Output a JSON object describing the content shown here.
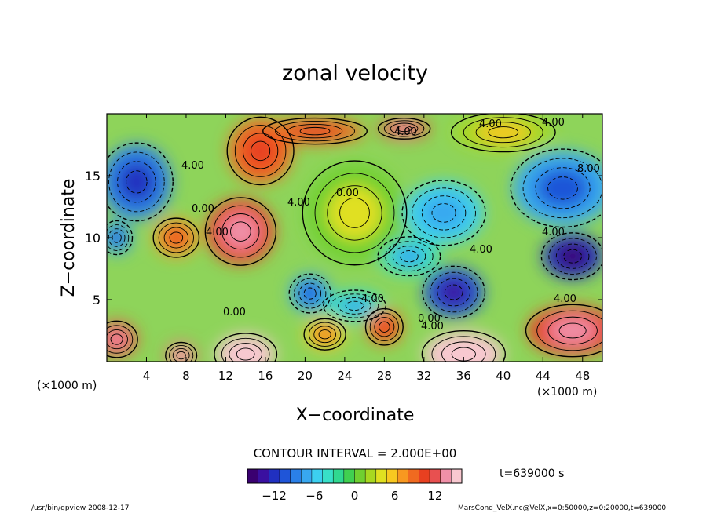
{
  "chart_data": {
    "type": "heatmap",
    "title": "zonal velocity",
    "xlabel": "X−coordinate",
    "ylabel": "Z−coordinate",
    "x_unit": "(×1000 m)",
    "xlim": [
      0,
      50
    ],
    "ylim": [
      0,
      20
    ],
    "x_ticks": [
      4,
      8,
      12,
      16,
      20,
      24,
      28,
      32,
      36,
      40,
      44,
      48
    ],
    "y_ticks": [
      5,
      10,
      15
    ],
    "contour_interval_text": "CONTOUR INTERVAL = 2.000E+00",
    "time_text": "t=639000 s",
    "colorbar": {
      "range": [
        -16,
        16
      ],
      "ticks": [
        -12,
        -6,
        0,
        6,
        12
      ],
      "colors": [
        "#3a0070",
        "#3a10a0",
        "#2030c0",
        "#1f55d8",
        "#2a80e8",
        "#38a8f0",
        "#3cd0f0",
        "#38e0c8",
        "#30d890",
        "#40d050",
        "#70d030",
        "#a8d820",
        "#e0e020",
        "#f8c820",
        "#f89820",
        "#f06a20",
        "#e84020",
        "#e85050",
        "#f090a8",
        "#f8c8d0"
      ]
    },
    "contour_labels": [
      "4.00",
      "0.00",
      "4.00",
      "0.00",
      "4.00",
      "0.00",
      "4.00",
      "4.00",
      "4.00",
      "0.00",
      "4.00",
      "8.00",
      "4.00",
      "4.00",
      "4.00",
      "4.00"
    ],
    "field_blobs": [
      {
        "x": 13.5,
        "z": 10.5,
        "rx": 3.4,
        "rz": 2.6,
        "v": 11
      },
      {
        "x": 15.5,
        "z": 17.0,
        "rx": 3.2,
        "rz": 2.6,
        "v": 8
      },
      {
        "x": 7.0,
        "z": 10.0,
        "rx": 2.2,
        "rz": 1.5,
        "v": 7
      },
      {
        "x": 21.0,
        "z": 18.6,
        "rx": 5.0,
        "rz": 1.0,
        "v": 8
      },
      {
        "x": 30.0,
        "z": 18.8,
        "rx": 2.5,
        "rz": 0.8,
        "v": 10
      },
      {
        "x": 3.0,
        "z": 14.5,
        "rx": 3.5,
        "rz": 3.0,
        "v": -9
      },
      {
        "x": 1.0,
        "z": 10.0,
        "rx": 1.5,
        "rz": 1.3,
        "v": -8
      },
      {
        "x": 35.0,
        "z": 5.6,
        "rx": 3.0,
        "rz": 2.0,
        "v": -11
      },
      {
        "x": 47.0,
        "z": 8.5,
        "rx": 3.0,
        "rz": 1.8,
        "v": -12
      },
      {
        "x": 46.0,
        "z": 14.0,
        "rx": 5.0,
        "rz": 3.0,
        "v": -7
      },
      {
        "x": 34.0,
        "z": 12.0,
        "rx": 4.0,
        "rz": 2.5,
        "v": -5
      },
      {
        "x": 20.5,
        "z": 5.5,
        "rx": 2.0,
        "rz": 1.5,
        "v": -7
      },
      {
        "x": 25.0,
        "z": 4.5,
        "rx": 3.0,
        "rz": 1.2,
        "v": -4
      },
      {
        "x": 30.5,
        "z": 8.5,
        "rx": 3.0,
        "rz": 1.5,
        "v": -4
      },
      {
        "x": 1.0,
        "z": 1.8,
        "rx": 2.0,
        "rz": 1.4,
        "v": 10
      },
      {
        "x": 47.0,
        "z": 2.5,
        "rx": 4.5,
        "rz": 2.0,
        "v": 11
      },
      {
        "x": 28.0,
        "z": 2.8,
        "rx": 1.8,
        "rz": 1.4,
        "v": 8
      },
      {
        "x": 22.0,
        "z": 2.2,
        "rx": 2.0,
        "rz": 1.2,
        "v": 6
      },
      {
        "x": 14.0,
        "z": 0.6,
        "rx": 3.0,
        "rz": 1.6,
        "v": 16
      },
      {
        "x": 36.0,
        "z": 0.6,
        "rx": 4.0,
        "rz": 1.8,
        "v": 16
      },
      {
        "x": 7.5,
        "z": 0.5,
        "rx": 1.5,
        "rz": 1.0,
        "v": 12
      },
      {
        "x": 25.0,
        "z": 12.0,
        "rx": 5.0,
        "rz": 4.0,
        "v": 1
      },
      {
        "x": 40.0,
        "z": 18.5,
        "rx": 5.0,
        "rz": 1.5,
        "v": 3
      }
    ]
  },
  "footer": {
    "program": "/usr/bin/gpview   2008-12-17",
    "file": "MarsCond_VelX.nc@VelX,x=0:50000,z=0:20000,t=639000"
  }
}
